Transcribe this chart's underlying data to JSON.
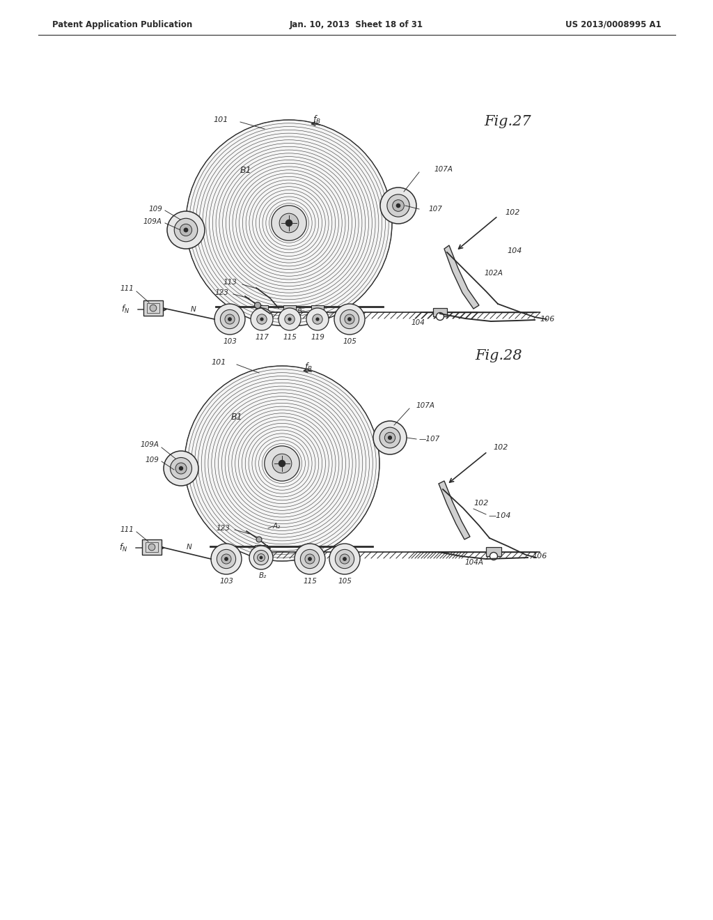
{
  "page_header": {
    "left": "Patent Application Publication",
    "center": "Jan. 10, 2013  Sheet 18 of 31",
    "right": "US 2013/0008995 A1"
  },
  "fig27_title": "Fig.27",
  "fig28_title": "Fig.28",
  "bg_color": "#ffffff",
  "line_color": "#2a2a2a"
}
